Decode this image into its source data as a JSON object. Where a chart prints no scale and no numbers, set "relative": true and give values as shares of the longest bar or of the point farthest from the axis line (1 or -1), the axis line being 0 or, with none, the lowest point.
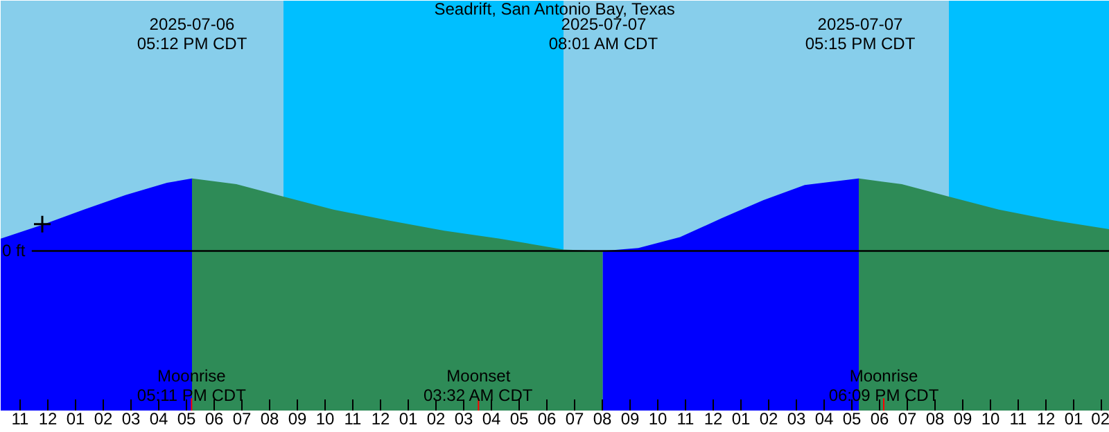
{
  "chart_data": {
    "type": "area",
    "title": "Seadrift, San Antonio Bay, Texas",
    "relative": true,
    "xlim": [
      "2025-07-06T10:18",
      "2025-07-08T02:18"
    ],
    "xticks": [
      {
        "value": "2025-07-06T11:00",
        "label": "11"
      },
      {
        "value": "2025-07-06T12:00",
        "label": "12"
      },
      {
        "value": "2025-07-06T13:00",
        "label": "01"
      },
      {
        "value": "2025-07-06T14:00",
        "label": "02"
      },
      {
        "value": "2025-07-06T15:00",
        "label": "03"
      },
      {
        "value": "2025-07-06T16:00",
        "label": "04"
      },
      {
        "value": "2025-07-06T17:00",
        "label": "05"
      },
      {
        "value": "2025-07-06T18:00",
        "label": "06"
      },
      {
        "value": "2025-07-06T19:00",
        "label": "07"
      },
      {
        "value": "2025-07-06T20:00",
        "label": "08"
      },
      {
        "value": "2025-07-06T21:00",
        "label": "09"
      },
      {
        "value": "2025-07-06T22:00",
        "label": "10"
      },
      {
        "value": "2025-07-06T23:00",
        "label": "11"
      },
      {
        "value": "2025-07-07T00:00",
        "label": "12"
      },
      {
        "value": "2025-07-07T01:00",
        "label": "01"
      },
      {
        "value": "2025-07-07T02:00",
        "label": "02"
      },
      {
        "value": "2025-07-07T03:00",
        "label": "03"
      },
      {
        "value": "2025-07-07T04:00",
        "label": "04"
      },
      {
        "value": "2025-07-07T05:00",
        "label": "05"
      },
      {
        "value": "2025-07-07T06:00",
        "label": "06"
      },
      {
        "value": "2025-07-07T07:00",
        "label": "07"
      },
      {
        "value": "2025-07-07T08:00",
        "label": "08"
      },
      {
        "value": "2025-07-07T09:00",
        "label": "09"
      },
      {
        "value": "2025-07-07T10:00",
        "label": "10"
      },
      {
        "value": "2025-07-07T11:00",
        "label": "11"
      },
      {
        "value": "2025-07-07T12:00",
        "label": "12"
      },
      {
        "value": "2025-07-07T13:00",
        "label": "01"
      },
      {
        "value": "2025-07-07T14:00",
        "label": "02"
      },
      {
        "value": "2025-07-07T15:00",
        "label": "03"
      },
      {
        "value": "2025-07-07T16:00",
        "label": "04"
      },
      {
        "value": "2025-07-07T17:00",
        "label": "05"
      },
      {
        "value": "2025-07-07T18:00",
        "label": "06"
      },
      {
        "value": "2025-07-07T19:00",
        "label": "07"
      },
      {
        "value": "2025-07-07T20:00",
        "label": "08"
      },
      {
        "value": "2025-07-07T21:00",
        "label": "09"
      },
      {
        "value": "2025-07-07T22:00",
        "label": "10"
      },
      {
        "value": "2025-07-07T23:00",
        "label": "11"
      },
      {
        "value": "2025-07-08T00:00",
        "label": "12"
      },
      {
        "value": "2025-07-08T01:00",
        "label": "01"
      },
      {
        "value": "2025-07-08T02:00",
        "label": "02"
      }
    ],
    "series": [
      {
        "color": "#0000ff",
        "x": [
          "2025-07-06T10:18",
          "2025-07-06T11:48",
          "2025-07-06T13:18",
          "2025-07-06T14:48",
          "2025-07-06T16:18",
          "2025-07-06T17:12"
        ],
        "values": [
          0.17,
          0.36,
          0.57,
          0.77,
          0.94,
          1.0
        ]
      },
      {
        "color": "#2e8b57",
        "x": [
          "2025-07-06T17:12",
          "2025-07-06T18:48",
          "2025-07-06T20:30",
          "2025-07-06T22:18",
          "2025-07-07T00:18",
          "2025-07-07T02:18",
          "2025-07-07T04:18",
          "2025-07-07T06:36",
          "2025-07-07T08:01"
        ],
        "values": [
          1.0,
          0.92,
          0.75,
          0.57,
          0.42,
          0.28,
          0.17,
          0.02,
          0.0
        ]
      },
      {
        "color": "#0000ff",
        "x": [
          "2025-07-07T08:01",
          "2025-07-07T09:18",
          "2025-07-07T10:48",
          "2025-07-07T12:18",
          "2025-07-07T13:48",
          "2025-07-07T15:18",
          "2025-07-07T17:15"
        ],
        "values": [
          0.0,
          0.04,
          0.19,
          0.45,
          0.7,
          0.91,
          1.0
        ]
      },
      {
        "color": "#2e8b57",
        "x": [
          "2025-07-07T17:15",
          "2025-07-07T18:48",
          "2025-07-07T20:30",
          "2025-07-07T22:18",
          "2025-07-08T00:18",
          "2025-07-08T02:18"
        ],
        "values": [
          1.0,
          0.92,
          0.75,
          0.57,
          0.42,
          0.3
        ]
      },
      {
        "type": "scatter",
        "marker": "cross",
        "color": "#000000",
        "x": [
          "2025-07-06T11:48"
        ],
        "values": [
          0.37
        ]
      }
    ],
    "bands": [
      {
        "axis": "x",
        "from": "2025-07-06T10:18",
        "to": "2025-07-06T20:30",
        "color": "#87ceeb"
      },
      {
        "axis": "x",
        "from": "2025-07-06T20:30",
        "to": "2025-07-07T06:36",
        "color": "#00bfff"
      },
      {
        "axis": "x",
        "from": "2025-07-07T06:36",
        "to": "2025-07-07T20:30",
        "color": "#87ceeb"
      },
      {
        "axis": "x",
        "from": "2025-07-07T20:30",
        "to": "2025-07-08T02:18",
        "color": "#00bfff"
      }
    ],
    "ref_lines": [
      {
        "axis": "y",
        "value": 0,
        "label": "0 ft",
        "color": "#000000"
      },
      {
        "axis": "x",
        "value": "2025-07-06T17:11",
        "label": "Moonrise\n05:11 PM CDT",
        "color": "#ff0000"
      },
      {
        "axis": "x",
        "value": "2025-07-07T03:32",
        "label": "Moonset\n03:32 AM CDT",
        "color": "#ff0000"
      },
      {
        "axis": "x",
        "value": "2025-07-07T18:09",
        "label": "Moonrise\n06:09 PM CDT",
        "color": "#ff0000"
      }
    ],
    "annotations": [
      "2025-07-06\n05:12 PM CDT",
      "2025-07-07\n08:01 AM CDT",
      "2025-07-07\n05:15 PM CDT"
    ],
    "grid": false
  }
}
